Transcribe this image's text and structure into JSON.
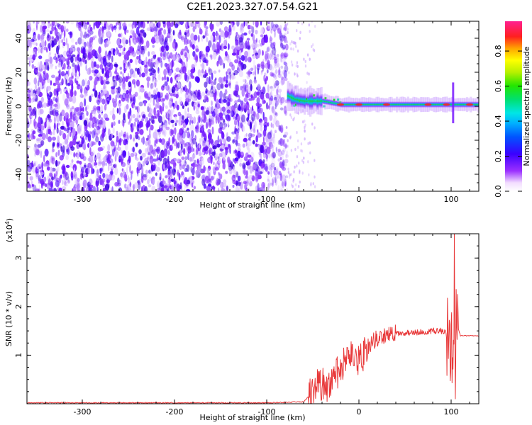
{
  "title": "C2E1.2023.327.07.54.G21",
  "chart_data": [
    {
      "type": "heatmap",
      "xlabel": "Height of straight line (km)",
      "ylabel": "Frequency (Hz)",
      "xlim": [
        -360,
        130
      ],
      "ylim": [
        -50,
        50
      ],
      "xticks": [
        -300,
        -200,
        -100,
        0,
        100
      ],
      "yticks": [
        -40,
        -20,
        0,
        20,
        40
      ],
      "colorbar": {
        "label": "Normalized spectral amplitude",
        "range": [
          0.0,
          0.97
        ],
        "ticks": [
          0.0,
          0.2,
          0.4,
          0.6,
          0.8
        ],
        "colormap": "rainbow (white-violet-blue-cyan-green-yellow-red-pink)"
      },
      "regions": [
        {
          "x_range": [
            -360,
            -78
          ],
          "frequency_range": [
            -50,
            50
          ],
          "description": "broadband noise",
          "amplitude_range": [
            0.0,
            0.15
          ]
        },
        {
          "x_range": [
            -78,
            130
          ],
          "center_frequency": 1,
          "description": "narrow carrier line",
          "peak_amplitude_range": [
            0.3,
            0.95
          ]
        }
      ],
      "carrier_centerline": {
        "x": [
          -78,
          -70,
          -60,
          -50,
          -40,
          -30,
          -20,
          -10,
          0,
          20,
          40,
          60,
          80,
          98,
          104,
          110,
          130
        ],
        "frequency": [
          6,
          4,
          3,
          3,
          3,
          2,
          1,
          1,
          1,
          1,
          1,
          1,
          1,
          1,
          1,
          1,
          1
        ]
      }
    },
    {
      "type": "line",
      "xlabel": "Height of straight line (km)",
      "ylabel": "SNR (10 * v/v)",
      "y_multiplier_label": "(x10",
      "y_multiplier_exp": "4",
      "y_multiplier_close": ")",
      "xlim": [
        -360,
        130
      ],
      "ylim": [
        0,
        3.5
      ],
      "xticks": [
        -300,
        -200,
        -100,
        0,
        100
      ],
      "yticks": [
        1,
        2,
        3
      ],
      "series": [
        {
          "color": "#e8393a",
          "x": [
            -360,
            -300,
            -200,
            -100,
            -60,
            -50,
            -45,
            -40,
            -35,
            -30,
            -25,
            -20,
            -15,
            -10,
            -5,
            0,
            5,
            10,
            20,
            30,
            40,
            50,
            60,
            70,
            80,
            90,
            95,
            100,
            103,
            105,
            107,
            110,
            120,
            130
          ],
          "y": [
            0.02,
            0.02,
            0.02,
            0.02,
            0.04,
            0.25,
            0.45,
            0.4,
            0.35,
            0.5,
            0.6,
            0.7,
            0.85,
            0.95,
            0.9,
            0.9,
            1.0,
            1.2,
            1.35,
            1.42,
            1.45,
            1.46,
            1.46,
            1.48,
            1.5,
            1.5,
            1.45,
            1.2,
            1.4,
            1.5,
            1.6,
            1.4,
            1.4,
            1.4
          ]
        }
      ]
    }
  ]
}
